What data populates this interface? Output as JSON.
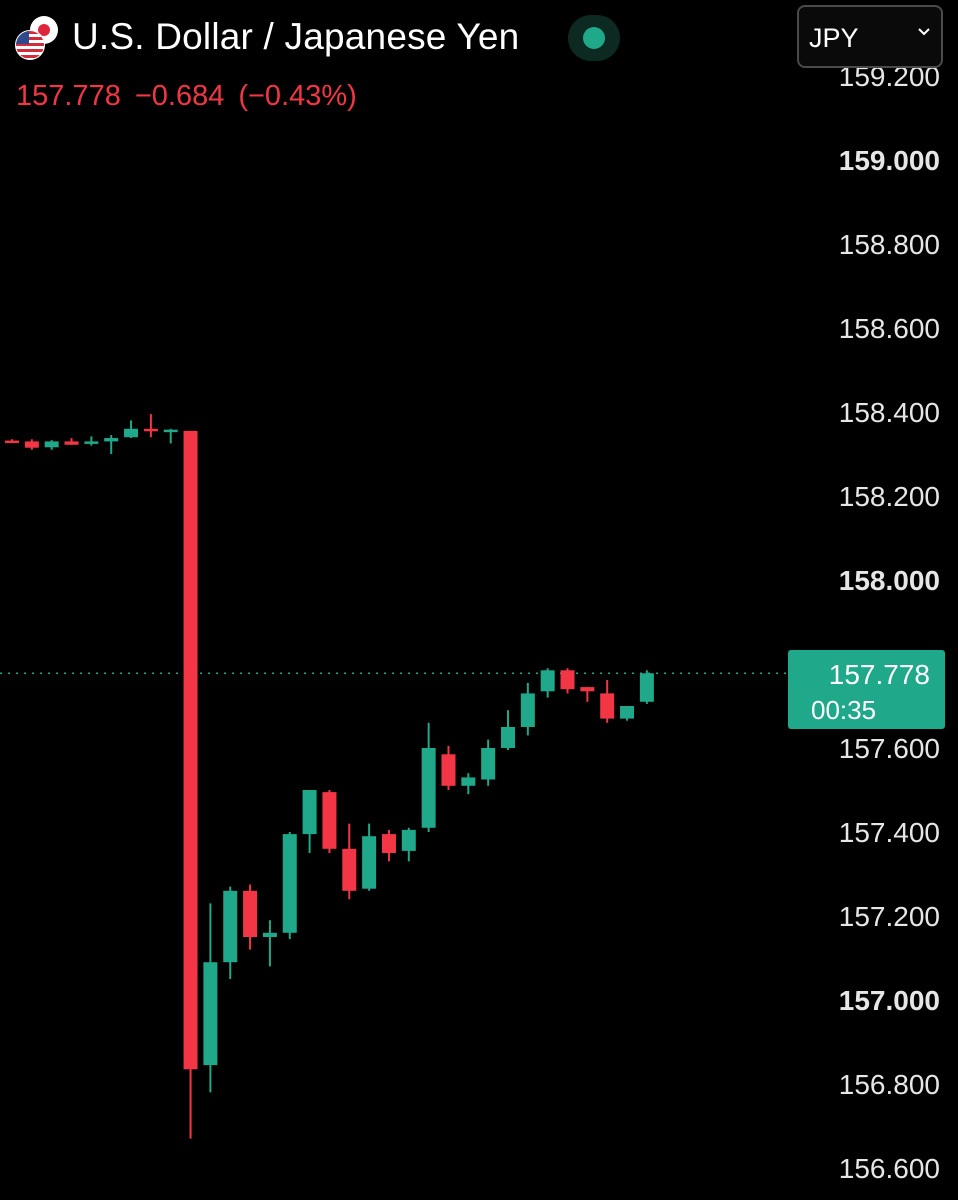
{
  "header": {
    "flag_icon": "usd-jpy-flag-icon",
    "title": "U.S. Dollar / Japanese Yen",
    "price": "157.778",
    "change": "−0.684",
    "change_pct": "(−0.43%)",
    "change_color": "#f23645",
    "status_icon": "market-status-dot-icon"
  },
  "currency_select": {
    "value": "JPY"
  },
  "price_tag": {
    "price": "157.778",
    "countdown": "00:35",
    "color": "#1fa889"
  },
  "colors": {
    "up": "#1fa889",
    "down": "#f23645",
    "background": "#000000",
    "axis_text": "#e6e6e6"
  },
  "chart_data": {
    "type": "candlestick",
    "title": "U.S. Dollar / Japanese Yen",
    "ylim": [
      156.57,
      159.23
    ],
    "yticks": [
      {
        "value": 159.2,
        "label": "159.200"
      },
      {
        "value": 159.0,
        "label": "159.000",
        "bold": true
      },
      {
        "value": 158.8,
        "label": "158.800"
      },
      {
        "value": 158.6,
        "label": "158.600"
      },
      {
        "value": 158.4,
        "label": "158.400"
      },
      {
        "value": 158.2,
        "label": "158.200"
      },
      {
        "value": 158.0,
        "label": "158.000",
        "bold": true
      },
      {
        "value": 157.6,
        "label": "157.600"
      },
      {
        "value": 157.4,
        "label": "157.400"
      },
      {
        "value": 157.2,
        "label": "157.200"
      },
      {
        "value": 157.0,
        "label": "157.000",
        "bold": true
      },
      {
        "value": 156.8,
        "label": "156.800"
      },
      {
        "value": 156.6,
        "label": "156.600"
      }
    ],
    "current_price": 157.778,
    "grid": false,
    "candles": [
      {
        "o": 158.332,
        "h": 158.335,
        "l": 158.328,
        "c": 158.33
      },
      {
        "o": 158.33,
        "h": 158.335,
        "l": 158.31,
        "c": 158.315
      },
      {
        "o": 158.316,
        "h": 158.333,
        "l": 158.31,
        "c": 158.33
      },
      {
        "o": 158.33,
        "h": 158.338,
        "l": 158.322,
        "c": 158.322
      },
      {
        "o": 158.325,
        "h": 158.342,
        "l": 158.32,
        "c": 158.33
      },
      {
        "o": 158.33,
        "h": 158.345,
        "l": 158.3,
        "c": 158.338
      },
      {
        "o": 158.34,
        "h": 158.38,
        "l": 158.338,
        "c": 158.36
      },
      {
        "o": 158.36,
        "h": 158.395,
        "l": 158.34,
        "c": 158.358
      },
      {
        "o": 158.358,
        "h": 158.36,
        "l": 158.325,
        "c": 158.358
      },
      {
        "o": 158.355,
        "h": 158.355,
        "l": 156.67,
        "c": 156.835
      },
      {
        "o": 156.845,
        "h": 157.23,
        "l": 156.78,
        "c": 157.09
      },
      {
        "o": 157.09,
        "h": 157.27,
        "l": 157.05,
        "c": 157.26
      },
      {
        "o": 157.26,
        "h": 157.275,
        "l": 157.12,
        "c": 157.15
      },
      {
        "o": 157.15,
        "h": 157.19,
        "l": 157.08,
        "c": 157.16
      },
      {
        "o": 157.16,
        "h": 157.4,
        "l": 157.145,
        "c": 157.395
      },
      {
        "o": 157.395,
        "h": 157.5,
        "l": 157.35,
        "c": 157.5
      },
      {
        "o": 157.495,
        "h": 157.5,
        "l": 157.35,
        "c": 157.36
      },
      {
        "o": 157.36,
        "h": 157.42,
        "l": 157.24,
        "c": 157.26
      },
      {
        "o": 157.265,
        "h": 157.42,
        "l": 157.26,
        "c": 157.39
      },
      {
        "o": 157.395,
        "h": 157.405,
        "l": 157.33,
        "c": 157.35
      },
      {
        "o": 157.355,
        "h": 157.41,
        "l": 157.33,
        "c": 157.405
      },
      {
        "o": 157.41,
        "h": 157.66,
        "l": 157.4,
        "c": 157.6
      },
      {
        "o": 157.585,
        "h": 157.605,
        "l": 157.5,
        "c": 157.51
      },
      {
        "o": 157.51,
        "h": 157.54,
        "l": 157.49,
        "c": 157.53
      },
      {
        "o": 157.525,
        "h": 157.62,
        "l": 157.51,
        "c": 157.6
      },
      {
        "o": 157.6,
        "h": 157.69,
        "l": 157.595,
        "c": 157.65
      },
      {
        "o": 157.65,
        "h": 157.755,
        "l": 157.63,
        "c": 157.73
      },
      {
        "o": 157.735,
        "h": 157.79,
        "l": 157.72,
        "c": 157.785
      },
      {
        "o": 157.785,
        "h": 157.79,
        "l": 157.73,
        "c": 157.74
      },
      {
        "o": 157.745,
        "h": 157.745,
        "l": 157.71,
        "c": 157.735
      },
      {
        "o": 157.73,
        "h": 157.762,
        "l": 157.66,
        "c": 157.67
      },
      {
        "o": 157.67,
        "h": 157.7,
        "l": 157.665,
        "c": 157.7
      },
      {
        "o": 157.71,
        "h": 157.785,
        "l": 157.705,
        "c": 157.778
      }
    ]
  }
}
